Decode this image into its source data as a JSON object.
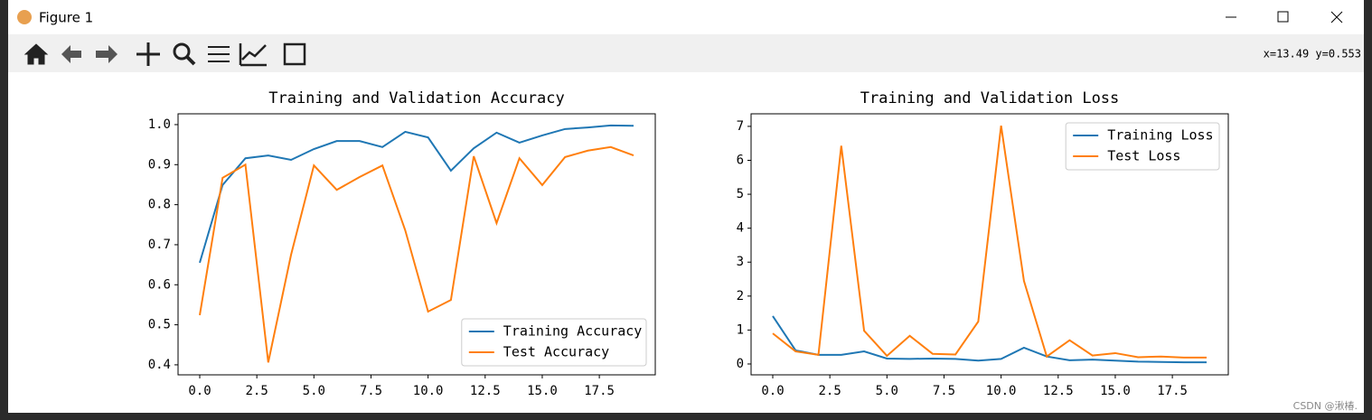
{
  "window": {
    "title": "Figure 1",
    "status": "x=13.49 y=0.553",
    "watermark": "CSDN @湫椿."
  },
  "chart_data": [
    {
      "type": "line",
      "title": "Training and Validation Accuracy",
      "x": [
        0,
        1,
        2,
        3,
        4,
        5,
        6,
        7,
        8,
        9,
        10,
        11,
        12,
        13,
        14,
        15,
        16,
        17,
        18,
        19
      ],
      "series": [
        {
          "name": "Training Accuracy",
          "color": "#1f77b4",
          "values": [
            0.655,
            0.849,
            0.916,
            0.923,
            0.912,
            0.939,
            0.959,
            0.959,
            0.944,
            0.982,
            0.968,
            0.885,
            0.941,
            0.98,
            0.955,
            0.973,
            0.989,
            0.993,
            0.998,
            0.997
          ]
        },
        {
          "name": "Test Accuracy",
          "color": "#ff7f0e",
          "values": [
            0.524,
            0.867,
            0.9,
            0.406,
            0.675,
            0.898,
            0.837,
            0.869,
            0.898,
            0.736,
            0.533,
            0.562,
            0.921,
            0.754,
            0.916,
            0.849,
            0.919,
            0.935,
            0.944,
            0.923
          ]
        }
      ],
      "xlim": [
        -0.95,
        19.95
      ],
      "xticks": [
        {
          "value": 0,
          "label": "0.0"
        },
        2.5,
        {
          "value": 5,
          "label": "5.0"
        },
        7.5,
        {
          "value": 10,
          "label": "10.0"
        },
        12.5,
        {
          "value": 15,
          "label": "15.0"
        },
        17.5
      ],
      "ylim": [
        0.375,
        1.027
      ],
      "yticks": [
        0.4,
        0.5,
        0.6,
        0.7,
        0.8,
        0.9,
        {
          "value": 1,
          "label": "1.0"
        }
      ],
      "legend": "lower right"
    },
    {
      "type": "line",
      "title": "Training and Validation Loss",
      "x": [
        0,
        1,
        2,
        3,
        4,
        5,
        6,
        7,
        8,
        9,
        10,
        11,
        12,
        13,
        14,
        15,
        16,
        17,
        18,
        19
      ],
      "series": [
        {
          "name": "Training Loss",
          "color": "#1f77b4",
          "values": [
            1.41,
            0.4,
            0.27,
            0.27,
            0.37,
            0.16,
            0.15,
            0.16,
            0.15,
            0.1,
            0.15,
            0.48,
            0.22,
            0.11,
            0.13,
            0.1,
            0.07,
            0.06,
            0.05,
            0.05
          ]
        },
        {
          "name": "Test Loss",
          "color": "#ff7f0e",
          "values": [
            0.9,
            0.37,
            0.27,
            6.43,
            0.98,
            0.24,
            0.83,
            0.3,
            0.28,
            1.25,
            7.02,
            2.45,
            0.22,
            0.7,
            0.25,
            0.32,
            0.2,
            0.22,
            0.19,
            0.19
          ]
        }
      ],
      "xlim": [
        -0.95,
        19.95
      ],
      "xticks": [
        {
          "value": 0,
          "label": "0.0"
        },
        2.5,
        {
          "value": 5,
          "label": "5.0"
        },
        7.5,
        {
          "value": 10,
          "label": "10.0"
        },
        12.5,
        {
          "value": 15,
          "label": "15.0"
        },
        17.5
      ],
      "ylim": [
        -0.32,
        7.37
      ],
      "yticks": [
        0,
        1,
        2,
        3,
        4,
        5,
        6,
        7
      ],
      "legend": "upper right"
    }
  ]
}
